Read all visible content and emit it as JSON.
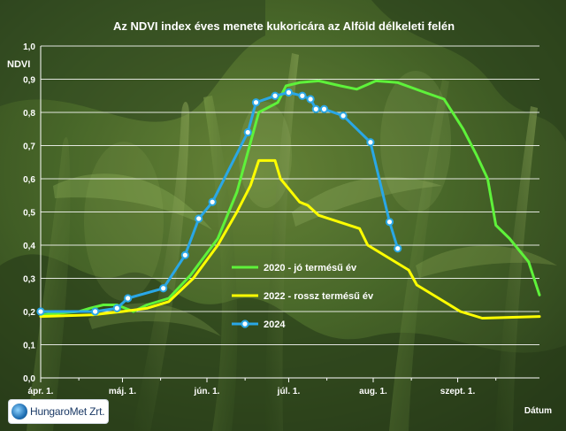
{
  "chart_data": {
    "type": "line",
    "title": "Az NDVI index éves menete kukoricára az Alföld délkeleti felén",
    "ylabel": "NDVI",
    "xlabel": "Dátum",
    "ylim": [
      0,
      1
    ],
    "xlim": [
      "2000-04-01",
      "2000-10-01"
    ],
    "yticks": [
      "0,0",
      "0,1",
      "0,2",
      "0,3",
      "0,4",
      "0,5",
      "0,6",
      "0,7",
      "0,8",
      "0,9",
      "1,0"
    ],
    "xticks": [
      {
        "label": "ápr. 1.",
        "date": "2000-04-01"
      },
      {
        "label": "máj. 1.",
        "date": "2000-05-01"
      },
      {
        "label": "jún. 1.",
        "date": "2000-06-01"
      },
      {
        "label": "júl. 1.",
        "date": "2000-07-01"
      },
      {
        "label": "aug. 1.",
        "date": "2000-08-01"
      },
      {
        "label": "szept. 1.",
        "date": "2000-09-01"
      }
    ],
    "grid": true,
    "legend_position": "right",
    "series": [
      {
        "name": "2020 - jó termésű év",
        "color": "#5ef23a",
        "marker": "none",
        "points": [
          [
            "2000-04-01",
            0.19
          ],
          [
            "2000-04-15",
            0.2
          ],
          [
            "2000-04-19",
            0.21
          ],
          [
            "2000-04-24",
            0.22
          ],
          [
            "2000-04-29",
            0.22
          ],
          [
            "2000-05-02",
            0.21
          ],
          [
            "2000-05-05",
            0.2
          ],
          [
            "2000-05-10",
            0.22
          ],
          [
            "2000-05-18",
            0.24
          ],
          [
            "2000-05-26",
            0.31
          ],
          [
            "2000-06-05",
            0.42
          ],
          [
            "2000-06-12",
            0.56
          ],
          [
            "2000-06-20",
            0.8
          ],
          [
            "2000-06-27",
            0.83
          ],
          [
            "2000-06-30",
            0.88
          ],
          [
            "2000-07-05",
            0.89
          ],
          [
            "2000-07-12",
            0.895
          ],
          [
            "2000-07-20",
            0.88
          ],
          [
            "2000-07-26",
            0.87
          ],
          [
            "2000-08-02",
            0.895
          ],
          [
            "2000-08-10",
            0.89
          ],
          [
            "2000-08-20",
            0.86
          ],
          [
            "2000-08-27",
            0.84
          ],
          [
            "2000-09-03",
            0.75
          ],
          [
            "2000-09-08",
            0.67
          ],
          [
            "2000-09-12",
            0.6
          ],
          [
            "2000-09-15",
            0.46
          ],
          [
            "2000-09-20",
            0.42
          ],
          [
            "2000-09-27",
            0.35
          ],
          [
            "2000-10-01",
            0.25
          ]
        ]
      },
      {
        "name": "2022 - rossz termésű év",
        "color": "#ffff00",
        "marker": "none",
        "points": [
          [
            "2000-04-01",
            0.185
          ],
          [
            "2000-04-20",
            0.19
          ],
          [
            "2000-05-01",
            0.2
          ],
          [
            "2000-05-10",
            0.21
          ],
          [
            "2000-05-18",
            0.23
          ],
          [
            "2000-05-27",
            0.3
          ],
          [
            "2000-06-05",
            0.4
          ],
          [
            "2000-06-12",
            0.5
          ],
          [
            "2000-06-17",
            0.58
          ],
          [
            "2000-06-20",
            0.655
          ],
          [
            "2000-06-26",
            0.655
          ],
          [
            "2000-06-28",
            0.6
          ],
          [
            "2000-07-01",
            0.57
          ],
          [
            "2000-07-05",
            0.53
          ],
          [
            "2000-07-08",
            0.52
          ],
          [
            "2000-07-12",
            0.49
          ],
          [
            "2000-07-27",
            0.45
          ],
          [
            "2000-07-30",
            0.4
          ],
          [
            "2000-08-07",
            0.36
          ],
          [
            "2000-08-14",
            0.325
          ],
          [
            "2000-08-17",
            0.28
          ],
          [
            "2000-08-25",
            0.24
          ],
          [
            "2000-09-02",
            0.2
          ],
          [
            "2000-09-10",
            0.18
          ],
          [
            "2000-10-01",
            0.185
          ]
        ]
      },
      {
        "name": "2024",
        "color": "#2aa7e6",
        "marker": "circle",
        "points": [
          [
            "2000-04-01",
            0.2
          ],
          [
            "2000-04-21",
            0.2
          ],
          [
            "2000-04-29",
            0.21
          ],
          [
            "2000-05-03",
            0.24
          ],
          [
            "2000-05-16",
            0.27
          ],
          [
            "2000-05-24",
            0.37
          ],
          [
            "2000-05-29",
            0.48
          ],
          [
            "2000-06-03",
            0.53
          ],
          [
            "2000-06-16",
            0.74
          ],
          [
            "2000-06-19",
            0.83
          ],
          [
            "2000-06-26",
            0.85
          ],
          [
            "2000-07-01",
            0.86
          ],
          [
            "2000-07-06",
            0.85
          ],
          [
            "2000-07-09",
            0.84
          ],
          [
            "2000-07-11",
            0.81
          ],
          [
            "2000-07-14",
            0.81
          ],
          [
            "2000-07-21",
            0.79
          ],
          [
            "2000-07-31",
            0.71
          ],
          [
            "2000-08-07",
            0.47
          ],
          [
            "2000-08-10",
            0.39
          ]
        ]
      }
    ]
  },
  "footer": {
    "logo_text": "HungaroMet Zrt."
  }
}
